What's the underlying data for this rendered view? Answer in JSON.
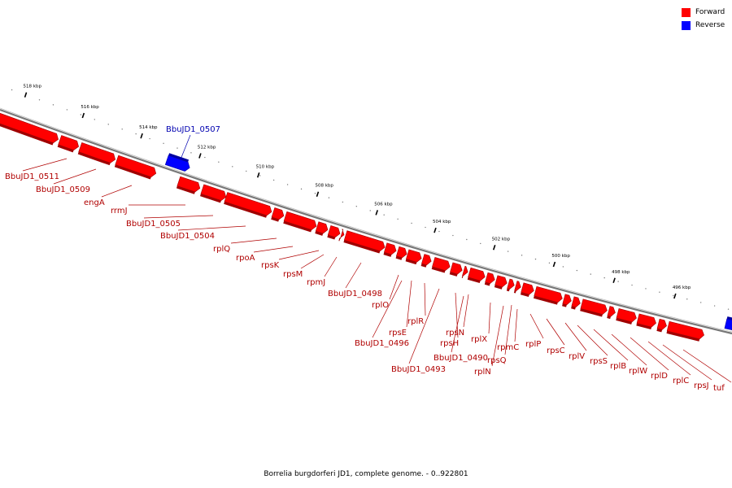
{
  "title": "Borrelia burgdorferi JD1, complete genome. - 0..922801",
  "legend": [
    {
      "label": "Forward",
      "color": "#ff0000"
    },
    {
      "label": "Reverse",
      "color": "#0000ff"
    }
  ],
  "colors": {
    "forward": "#ff0000",
    "reverse": "#0000ff",
    "backbone": "#777777",
    "forward_label": "#b00000",
    "reverse_label": "#0000b0"
  },
  "ticks": [
    "518 kbp",
    "516 kbp",
    "514 kbp",
    "512 kbp",
    "510 kbp",
    "508 kbp",
    "506 kbp",
    "504 kbp",
    "502 kbp",
    "500 kbp",
    "498 kbp",
    "496 kbp"
  ],
  "reverse_genes": [
    "BbuJD1_0507"
  ],
  "forward_labels": [
    "BbuJD1_0511",
    "BbuJD1_0509",
    "engA",
    "rrmJ",
    "BbuJD1_0505",
    "BbuJD1_0504",
    "rplQ",
    "rpoA",
    "rpsK",
    "rpsM",
    "rpmJ",
    "BbuJD1_0498",
    "rplO",
    "rpsE",
    "BbuJD1_0496",
    "rplR",
    "BbuJD1_0493",
    "rpsH",
    "rpsN",
    "BbuJD1_0490",
    "rplX",
    "rplN",
    "rpsQ",
    "rpmC",
    "rplP",
    "rpsC",
    "rplV",
    "rpsS",
    "rplB",
    "rplW",
    "rplD",
    "rplC",
    "rpsJ",
    "tuf"
  ]
}
